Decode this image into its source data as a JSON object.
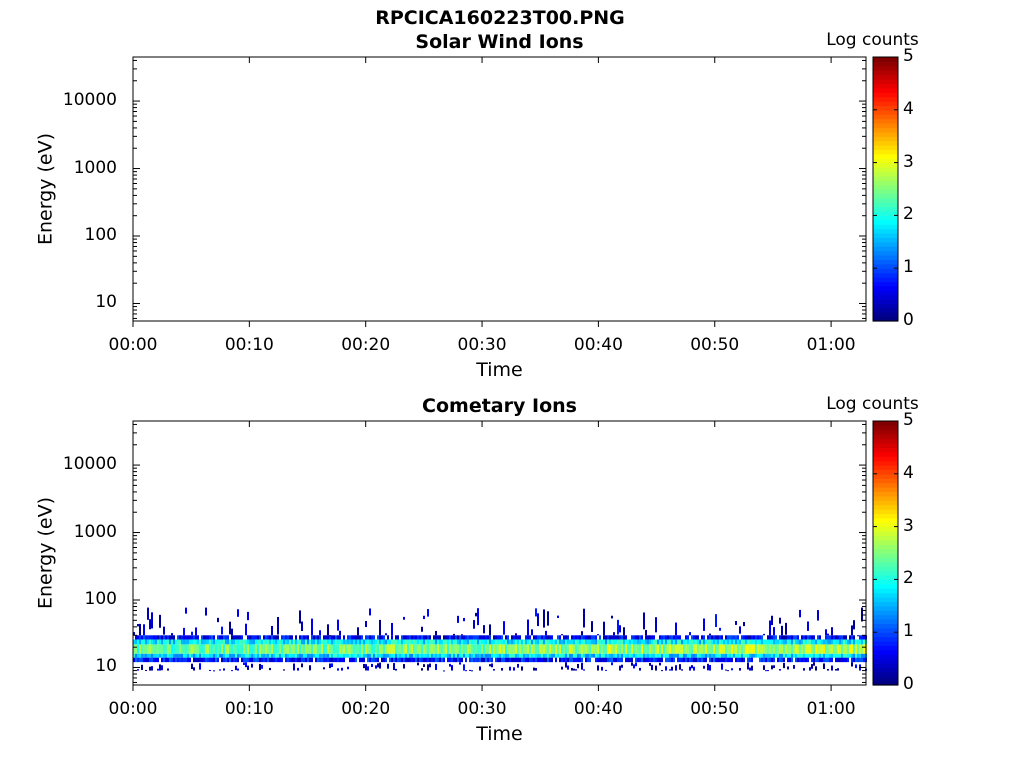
{
  "figure_title": "RPCICA160223T00.PNG",
  "colorbar": {
    "label": "Log counts",
    "ticks": [
      "0",
      "1",
      "2",
      "3",
      "4",
      "5"
    ],
    "range": [
      0,
      5
    ],
    "colormap": "jet"
  },
  "chart_data": [
    {
      "type": "heatmap",
      "title": "Solar Wind Ions",
      "xlabel": "Time",
      "ylabel": "Energy (eV)",
      "x_ticks": [
        "00:00",
        "00:10",
        "00:20",
        "00:30",
        "00:40",
        "00:50",
        "01:00"
      ],
      "x_range_minutes": [
        0,
        63
      ],
      "y_ticks": [
        "10",
        "100",
        "1000",
        "10000"
      ],
      "y_scale": "log",
      "y_range": [
        5.5,
        45000
      ],
      "colorbar_label": "Log counts",
      "bands": []
    },
    {
      "type": "heatmap",
      "title": "Cometary Ions",
      "xlabel": "Time",
      "ylabel": "Energy (eV)",
      "x_ticks": [
        "00:00",
        "00:10",
        "00:20",
        "00:30",
        "00:40",
        "00:50",
        "01:00"
      ],
      "x_range_minutes": [
        0,
        63
      ],
      "y_ticks": [
        "10",
        "100",
        "1000",
        "10000"
      ],
      "y_scale": "log",
      "y_range": [
        5.5,
        45000
      ],
      "colorbar_label": "Log counts",
      "bands": [
        {
          "e_min": 12,
          "e_max": 14,
          "log_counts": 0.7,
          "fill": 0.9
        },
        {
          "e_min": 14,
          "e_max": 16,
          "log_counts": 1.7,
          "fill": 1.0
        },
        {
          "e_min": 16,
          "e_max": 22,
          "log_counts": 2.3,
          "fill": 1.0
        },
        {
          "e_min": 22,
          "e_max": 26,
          "log_counts": 1.8,
          "fill": 1.0
        },
        {
          "e_min": 26,
          "e_max": 30,
          "log_counts": 0.6,
          "fill": 0.85
        },
        {
          "e_min": 9,
          "e_max": 12,
          "log_counts": 0.3,
          "fill": 0.35
        },
        {
          "e_min": 30,
          "e_max": 80,
          "log_counts": 0.3,
          "fill": 0.25
        }
      ]
    }
  ]
}
